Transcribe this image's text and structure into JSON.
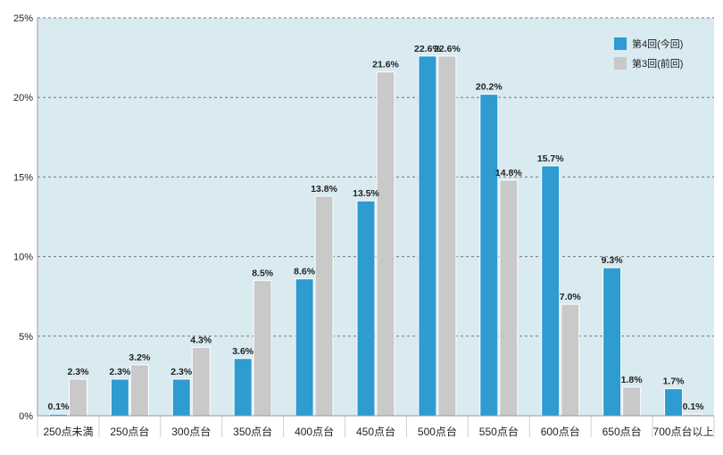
{
  "chart_data": {
    "type": "bar",
    "categories": [
      "250点未満",
      "250点台",
      "300点台",
      "350点台",
      "400点台",
      "450点台",
      "500点台",
      "550点台",
      "600点台",
      "650点台",
      "700点台以上"
    ],
    "series": [
      {
        "name": "第4回(今回)",
        "color": "#2e9bd1",
        "values": [
          0.1,
          2.3,
          2.3,
          3.6,
          8.6,
          13.5,
          22.6,
          20.2,
          15.7,
          9.3,
          1.7
        ]
      },
      {
        "name": "第3回(前回)",
        "color": "#c9c9c9",
        "values": [
          2.3,
          3.2,
          4.3,
          8.5,
          13.8,
          21.6,
          22.6,
          14.8,
          7.0,
          1.8,
          0.1
        ]
      }
    ],
    "value_labels": [
      [
        "0.1%",
        "2.3%",
        "2.3%",
        "3.6%",
        "8.6%",
        "13.5%",
        "22.6%",
        "20.2%",
        "15.7%",
        "9.3%",
        "1.7%"
      ],
      [
        "2.3%",
        "3.2%",
        "4.3%",
        "8.5%",
        "13.8%",
        "21.6%",
        "22.6%",
        "14.8%",
        "7.0%",
        "1.8%",
        "0.1%"
      ]
    ],
    "yticks": [
      0,
      5,
      10,
      15,
      20,
      25
    ],
    "ytick_labels": [
      "0%",
      "5%",
      "10%",
      "15%",
      "20%",
      "25%"
    ],
    "ylim": [
      0,
      25
    ],
    "grid": true,
    "legend_position": "top-right",
    "plot_background": "#d9eaf1"
  }
}
